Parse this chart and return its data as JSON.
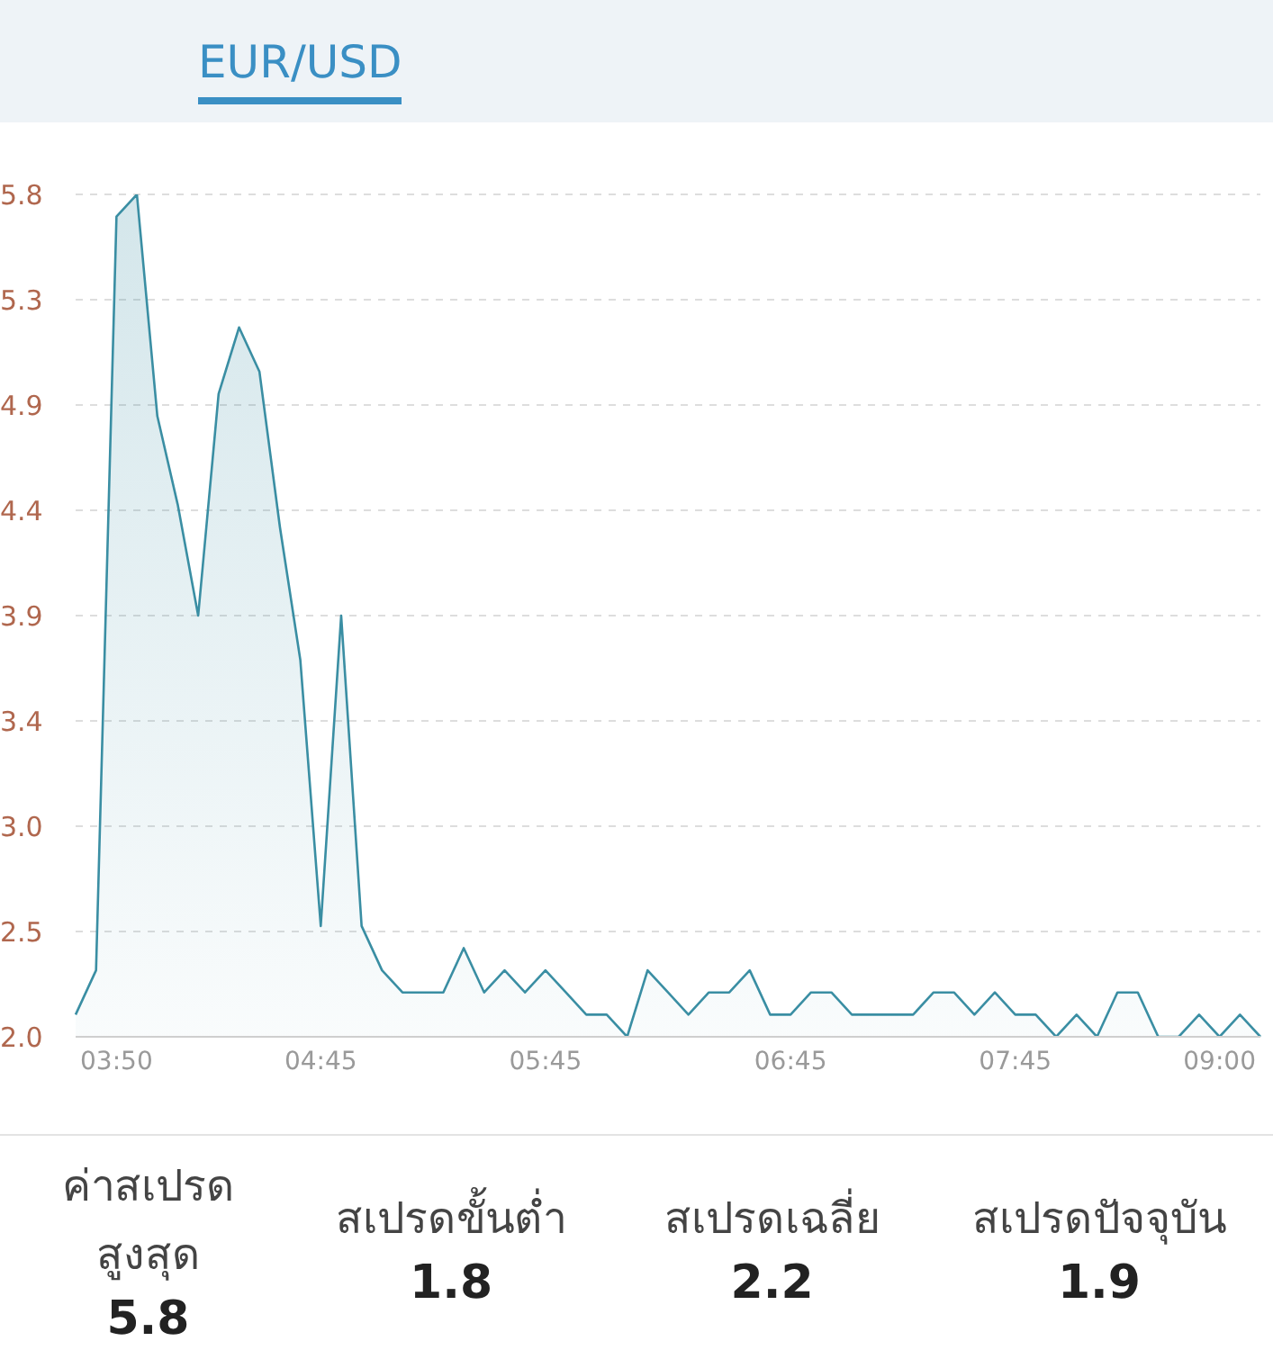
{
  "chart_data": {
    "type": "area",
    "title": "EUR/USD",
    "categories": [
      null,
      null,
      "03:50",
      null,
      null,
      null,
      null,
      null,
      null,
      null,
      null,
      null,
      "04:45",
      null,
      null,
      null,
      null,
      null,
      null,
      null,
      null,
      null,
      null,
      "05:45",
      null,
      null,
      null,
      null,
      null,
      null,
      null,
      null,
      null,
      null,
      null,
      "06:45",
      null,
      null,
      null,
      null,
      null,
      null,
      null,
      null,
      null,
      null,
      "07:45",
      null,
      null,
      null,
      null,
      null,
      null,
      null,
      null,
      null,
      "09:00",
      null,
      null
    ],
    "series": [
      {
        "color": "#3a8ea3",
        "values": [
          2.1,
          2.3,
          5.7,
          5.8,
          4.8,
          4.4,
          3.9,
          4.9,
          5.2,
          5.0,
          4.3,
          3.7,
          2.5,
          3.9,
          2.5,
          2.3,
          2.2,
          2.2,
          2.2,
          2.4,
          2.2,
          2.3,
          2.2,
          2.3,
          2.2,
          2.1,
          2.1,
          2.0,
          2.3,
          2.2,
          2.1,
          2.2,
          2.2,
          2.3,
          2.1,
          2.1,
          2.2,
          2.2,
          2.1,
          2.1,
          2.1,
          2.1,
          2.2,
          2.2,
          2.1,
          2.2,
          2.1,
          2.1,
          2.0,
          2.1,
          2.0,
          2.2,
          2.2,
          2.0,
          2.0,
          2.1,
          2.0,
          2.1,
          2.0
        ]
      }
    ],
    "ylim": [
      2.0,
      5.8
    ],
    "yticks": [
      {
        "value": 2.0,
        "label": "2.0"
      },
      {
        "value": 2.475,
        "label": "2.5"
      },
      {
        "value": 2.95,
        "label": "3.0"
      },
      {
        "value": 3.425,
        "label": "3.4"
      },
      {
        "value": 3.9,
        "label": "3.9"
      },
      {
        "value": 4.375,
        "label": "4.4"
      },
      {
        "value": 4.85,
        "label": "4.9"
      },
      {
        "value": 5.325,
        "label": "5.3"
      },
      {
        "value": 5.8,
        "label": "5.8"
      }
    ],
    "grid": "y",
    "legend": false,
    "marker": "none",
    "annotations": [
      "ค่าสเปรดสูงสุด",
      "5.8",
      "สเปรดขั้นต่ำ",
      "1.8",
      "สเปรดเฉลี่ย",
      "2.2",
      "สเปรดปัจจุบัน",
      "1.9"
    ]
  }
}
